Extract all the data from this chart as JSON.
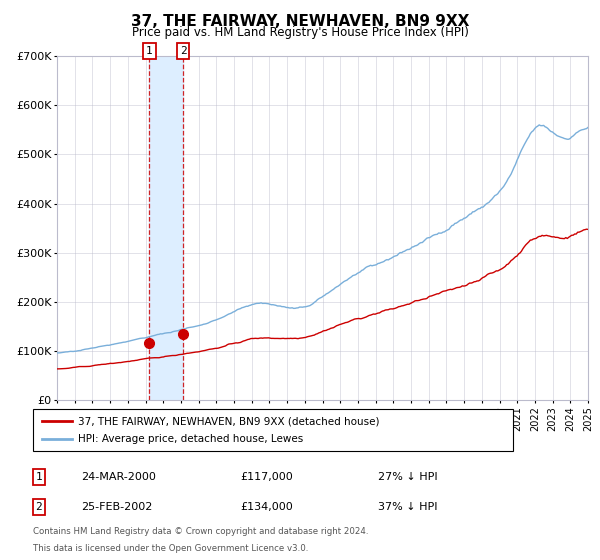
{
  "title": "37, THE FAIRWAY, NEWHAVEN, BN9 9XX",
  "subtitle": "Price paid vs. HM Land Registry's House Price Index (HPI)",
  "legend_label_red": "37, THE FAIRWAY, NEWHAVEN, BN9 9XX (detached house)",
  "legend_label_blue": "HPI: Average price, detached house, Lewes",
  "annotation1_date": "24-MAR-2000",
  "annotation1_price": "£117,000",
  "annotation1_hpi": "27% ↓ HPI",
  "annotation2_date": "25-FEB-2002",
  "annotation2_price": "£134,000",
  "annotation2_hpi": "37% ↓ HPI",
  "footer_line1": "Contains HM Land Registry data © Crown copyright and database right 2024.",
  "footer_line2": "This data is licensed under the Open Government Licence v3.0.",
  "red_color": "#cc0000",
  "blue_color": "#7aafda",
  "shade_color": "#ddeeff",
  "grid_color": "#bbbbcc",
  "annotation_box_color": "#cc0000",
  "ylim_min": 0,
  "ylim_max": 700000,
  "xlim_min": 1995,
  "xlim_max": 2025,
  "purchase1_year": 2000.22,
  "purchase1_value": 117000,
  "purchase2_year": 2002.13,
  "purchase2_value": 134000
}
